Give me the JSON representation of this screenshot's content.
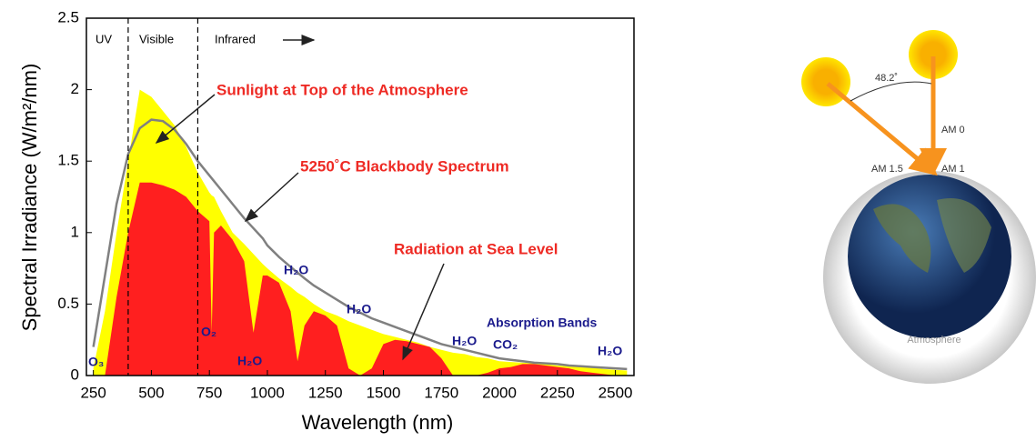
{
  "chart_data": {
    "type": "area",
    "xlabel": "Wavelength (nm)",
    "ylabel": "Spectral Irradiance (W/m²/nm)",
    "x": [
      250,
      300,
      350,
      400,
      450,
      500,
      550,
      600,
      650,
      700,
      750,
      760,
      770,
      800,
      850,
      900,
      940,
      980,
      1000,
      1050,
      1100,
      1130,
      1160,
      1200,
      1250,
      1300,
      1350,
      1400,
      1450,
      1500,
      1550,
      1600,
      1650,
      1700,
      1750,
      1800,
      1850,
      1900,
      1950,
      2000,
      2050,
      2100,
      2150,
      2200,
      2250,
      2300,
      2350,
      2400,
      2450,
      2500,
      2550
    ],
    "series": [
      {
        "name": "Sunlight at Top of the Atmosphere",
        "color": "#ffff00",
        "values": [
          0.05,
          0.45,
          1.0,
          1.5,
          2.0,
          1.95,
          1.85,
          1.75,
          1.6,
          1.42,
          1.28,
          1.26,
          1.25,
          1.15,
          1.0,
          0.92,
          0.85,
          0.78,
          0.75,
          0.68,
          0.62,
          0.58,
          0.55,
          0.5,
          0.45,
          0.42,
          0.38,
          0.35,
          0.32,
          0.29,
          0.27,
          0.25,
          0.23,
          0.2,
          0.18,
          0.16,
          0.15,
          0.13,
          0.12,
          0.1,
          0.095,
          0.09,
          0.085,
          0.08,
          0.07,
          0.065,
          0.06,
          0.055,
          0.045,
          0.04,
          0.035
        ]
      },
      {
        "name": "Radiation at Sea Level",
        "color": "#ff1f1f",
        "values": [
          0,
          0,
          0.55,
          1.0,
          1.35,
          1.35,
          1.33,
          1.3,
          1.25,
          1.15,
          1.08,
          0.3,
          1.0,
          1.05,
          0.95,
          0.8,
          0.3,
          0.7,
          0.7,
          0.65,
          0.45,
          0.1,
          0.35,
          0.45,
          0.42,
          0.35,
          0.05,
          0,
          0.05,
          0.22,
          0.25,
          0.24,
          0.22,
          0.2,
          0.12,
          0,
          0,
          0,
          0.02,
          0.05,
          0.06,
          0.08,
          0.08,
          0.07,
          0.06,
          0.05,
          0.03,
          0.02,
          0.01,
          0,
          0
        ]
      },
      {
        "name": "5250˚C Blackbody Spectrum",
        "color": "#808080",
        "line": true,
        "values": [
          0.2,
          0.7,
          1.2,
          1.55,
          1.73,
          1.79,
          1.78,
          1.72,
          1.62,
          1.5,
          1.4,
          1.38,
          1.36,
          1.3,
          1.2,
          1.1,
          1.03,
          0.96,
          0.91,
          0.83,
          0.76,
          0.72,
          0.68,
          0.63,
          0.58,
          0.53,
          0.48,
          0.44,
          0.4,
          0.37,
          0.34,
          0.31,
          0.28,
          0.25,
          0.22,
          0.2,
          0.18,
          0.16,
          0.14,
          0.12,
          0.11,
          0.1,
          0.09,
          0.085,
          0.08,
          0.07,
          0.065,
          0.06,
          0.055,
          0.05,
          0.045
        ]
      }
    ],
    "region_bounds": [
      400,
      700
    ],
    "regions": [
      "UV",
      "Visible",
      "Infrared"
    ],
    "annotations": [
      "O₃",
      "O₂",
      "H₂O",
      "H₂O",
      "H₂O",
      "H₂O",
      "CO₂",
      "H₂O",
      "Absorption Bands"
    ],
    "xlim": [
      220,
      2580
    ],
    "ylim": [
      0,
      2.5
    ],
    "xticks": [
      250,
      500,
      750,
      1000,
      1250,
      1500,
      1750,
      2000,
      2250,
      2500
    ],
    "yticks": [
      0,
      0.5,
      1,
      1.5,
      2,
      2.5
    ]
  },
  "diagram": {
    "angle": "48.2˚",
    "labels": [
      "AM 0",
      "AM 1.5",
      "AM 1"
    ],
    "atmosphere": "Atmosphere"
  }
}
